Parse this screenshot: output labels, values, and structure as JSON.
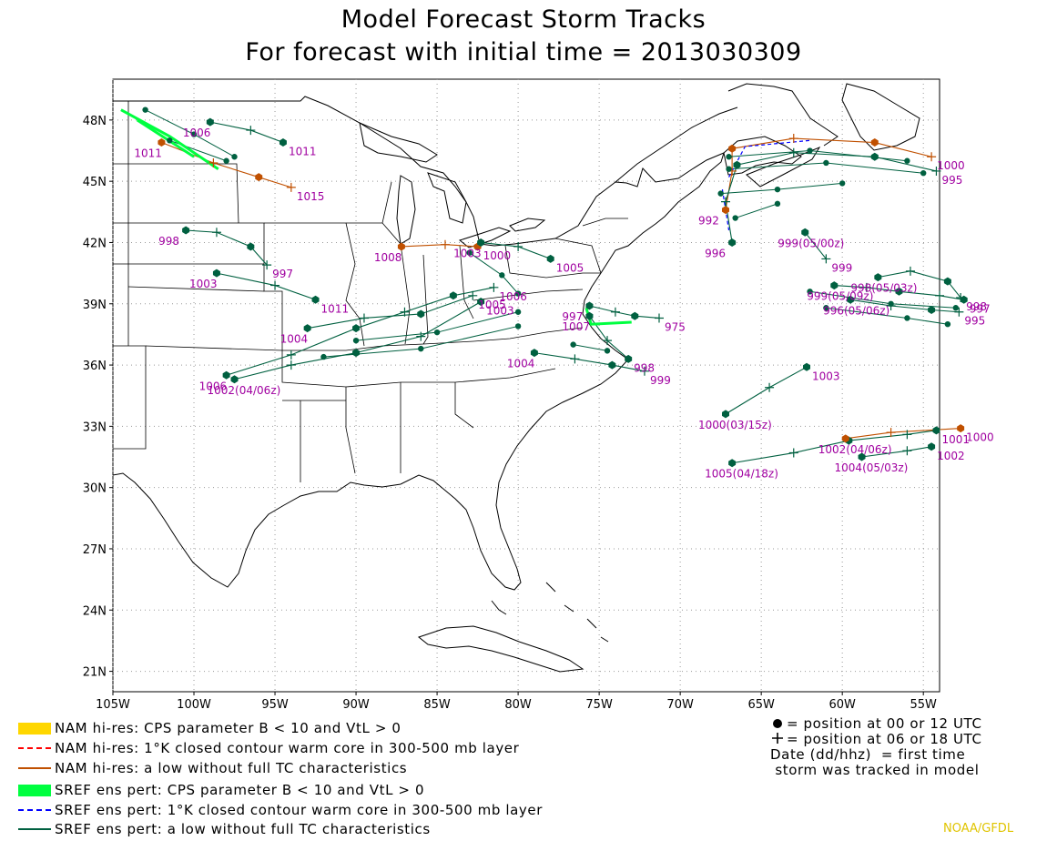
{
  "title": "Model Forecast Storm Tracks",
  "subtitle": "For forecast with initial time = 2013030309",
  "axes": {
    "lon_labels": [
      "105W",
      "100W",
      "95W",
      "90W",
      "85W",
      "80W",
      "75W",
      "70W",
      "65W",
      "60W",
      "55W"
    ],
    "lat_labels": [
      "48N",
      "45N",
      "42N",
      "39N",
      "36N",
      "33N",
      "30N",
      "27N",
      "24N",
      "21N"
    ]
  },
  "legend": [
    {
      "label": "NAM hi-res: CPS parameter B < 10 and VtL > 0",
      "color": "#ffd700",
      "style": "fill"
    },
    {
      "label": "NAM hi-res: 1°K closed contour warm core in 300-500 mb layer",
      "color": "#ff0000",
      "style": "dashed"
    },
    {
      "label": "NAM hi-res: a low without full TC characteristics",
      "color": "#c05000",
      "style": "solid"
    },
    {
      "label": "SREF ens pert: CPS parameter B < 10 and VtL > 0",
      "color": "#00ff40",
      "style": "fill"
    },
    {
      "label": "SREF ens pert: 1°K closed contour warm core in 300-500 mb layer",
      "color": "#0000ff",
      "style": "dashed"
    },
    {
      "label": "SREF ens pert: a low without full TC characteristics",
      "color": "#006040",
      "style": "solid"
    }
  ],
  "key": {
    "line1": "= position at 00 or 12 UTC",
    "line2": "= position at 06 or 18 UTC",
    "line3": "Date (dd/hhz)  = first time",
    "line4": " storm was tracked in model"
  },
  "credit": "NOAA/GFDL",
  "colors": {
    "label": "#a000a0",
    "nam_low": "#c05000",
    "sref_low": "#006040",
    "sref_cps": "#00ff40",
    "warm_core": "#0000ff"
  },
  "tracks": [
    {
      "label_start": "1005(04/18z)",
      "label_end": "1001",
      "points": [
        [
          -66.8,
          31.2
        ],
        [
          -63,
          31.7
        ],
        [
          -59.6,
          32.3
        ],
        [
          -56,
          32.6
        ],
        [
          -54.2,
          32.8
        ]
      ]
    },
    {
      "label_start": "1000(03/15z)",
      "label_end": "1003",
      "points": [
        [
          -67.2,
          33.6
        ],
        [
          -64.5,
          34.9
        ],
        [
          -62.2,
          35.9
        ]
      ]
    },
    {
      "label_start": "1002(04/06z)",
      "label_end": "1000",
      "points": [
        [
          -59.8,
          32.4
        ],
        [
          -57,
          32.7
        ],
        [
          -52.7,
          32.9
        ]
      ]
    },
    {
      "label_start": "1004(05/03z)",
      "label_end": "1002",
      "points": [
        [
          -58.8,
          31.5
        ],
        [
          -56,
          31.8
        ],
        [
          -54.5,
          32.0
        ]
      ]
    },
    {
      "label_start": "999(05/00z)",
      "label_end": "999",
      "points": [
        [
          -62.3,
          42.5
        ],
        [
          -61,
          41.2
        ]
      ]
    },
    {
      "label_start": "1006",
      "label_end": "1006",
      "points": [
        [
          -98,
          35.5
        ],
        [
          -94,
          36.5
        ],
        [
          -90,
          37.8
        ],
        [
          -87,
          38.6
        ],
        [
          -84,
          39.4
        ],
        [
          -81.5,
          39.8
        ]
      ]
    },
    {
      "label_start": "1002(04/06z)",
      "label_end": "1003",
      "points": [
        [
          -97.5,
          35.3
        ],
        [
          -94,
          36
        ],
        [
          -90,
          36.6
        ],
        [
          -86,
          37.4
        ],
        [
          -82.3,
          39.1
        ]
      ]
    },
    {
      "label_start": "1008",
      "label_end": "1000",
      "points": [
        [
          -87.2,
          41.8
        ],
        [
          -84.5,
          41.9
        ],
        [
          -82.5,
          41.8
        ]
      ]
    },
    {
      "label_start": "1004",
      "label_end": "1005",
      "points": [
        [
          -93,
          37.8
        ],
        [
          -89.5,
          38.3
        ],
        [
          -86,
          38.5
        ],
        [
          -82.8,
          39.4
        ]
      ]
    },
    {
      "label_start": "1003",
      "label_end": "1011",
      "points": [
        [
          -98.6,
          40.5
        ],
        [
          -95,
          39.9
        ],
        [
          -92.5,
          39.2
        ]
      ]
    },
    {
      "label_start": "998",
      "label_end": "997",
      "points": [
        [
          -100.5,
          42.6
        ],
        [
          -98.6,
          42.5
        ],
        [
          -96.5,
          41.8
        ],
        [
          -95.5,
          40.9
        ]
      ]
    },
    {
      "label_start": "1006",
      "label_end": "1011",
      "points": [
        [
          -99,
          47.9
        ],
        [
          -96.5,
          47.5
        ],
        [
          -94.5,
          46.9
        ]
      ]
    },
    {
      "label_start": "1011",
      "label_end": "1015",
      "points": [
        [
          -102,
          46.9
        ],
        [
          -98.8,
          45.9
        ],
        [
          -96,
          45.2
        ],
        [
          -94,
          44.7
        ]
      ]
    },
    {
      "label_start": "1003",
      "label_end": "1005",
      "points": [
        [
          -82.3,
          42.0
        ],
        [
          -80,
          41.8
        ],
        [
          -78,
          41.2
        ]
      ]
    },
    {
      "label_start": "1007",
      "label_end": "998",
      "points": [
        [
          -75.6,
          38.4
        ],
        [
          -74.5,
          37.2
        ],
        [
          -73.2,
          36.3
        ]
      ]
    },
    {
      "label_start": "997",
      "label_end": "975",
      "points": [
        [
          -75.6,
          38.9
        ],
        [
          -74,
          38.6
        ],
        [
          -72.8,
          38.4
        ],
        [
          -71.3,
          38.3
        ]
      ]
    },
    {
      "label_start": "1004",
      "label_end": "999",
      "points": [
        [
          -79,
          36.6
        ],
        [
          -76.5,
          36.3
        ],
        [
          -74.2,
          36.0
        ],
        [
          -72.2,
          35.7
        ]
      ]
    },
    {
      "label_start": "992",
      "label_end": "1000",
      "points": [
        [
          -67.2,
          43.6
        ],
        [
          -66.8,
          45.5
        ],
        [
          -66.8,
          46.6
        ],
        [
          -63,
          47.1
        ],
        [
          -58,
          46.9
        ],
        [
          -54.5,
          46.2
        ]
      ]
    },
    {
      "label_start": "996",
      "label_end": "995",
      "points": [
        [
          -66.8,
          42.0
        ],
        [
          -67.2,
          44.0
        ],
        [
          -66.5,
          45.8
        ],
        [
          -63,
          46.4
        ],
        [
          -58,
          46.2
        ],
        [
          -54.2,
          45.5
        ]
      ]
    },
    {
      "label_start": "999(05/09z)",
      "label_end": "997",
      "points": [
        [
          -60.5,
          39.9
        ],
        [
          -58.5,
          39.8
        ],
        [
          -56.5,
          39.6
        ],
        [
          -54,
          39.4
        ],
        [
          -52.5,
          39.2
        ]
      ]
    },
    {
      "label_start": "996(05/06z)",
      "label_end": "995",
      "points": [
        [
          -59.5,
          39.2
        ],
        [
          -57,
          38.9
        ],
        [
          -54.5,
          38.7
        ],
        [
          -52.8,
          38.6
        ]
      ]
    },
    {
      "label_start": "998(05/03z)",
      "label_end": "998",
      "points": [
        [
          -57.8,
          40.3
        ],
        [
          -55.8,
          40.6
        ],
        [
          -53.5,
          40.1
        ],
        [
          -52.7,
          39.3
        ]
      ]
    }
  ]
}
